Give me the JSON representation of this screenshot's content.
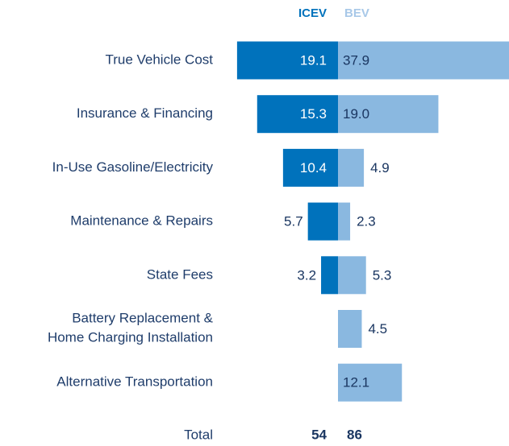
{
  "chart_data": {
    "type": "diverging-bar",
    "categories": [
      "True Vehicle Cost",
      "Insurance & Financing",
      "In-Use Gasoline/Electricity",
      "Maintenance & Repairs",
      "State Fees",
      "Battery Replacement &\nHome Charging Installation",
      "Alternative Transportation"
    ],
    "series": [
      {
        "name": "ICEV",
        "color": "#0072bc",
        "values": [
          19.1,
          15.3,
          10.4,
          5.7,
          3.2,
          null,
          null
        ],
        "value_labels": [
          "19.1",
          "15.3",
          "10.4",
          "5.7",
          "3.2",
          null,
          null
        ]
      },
      {
        "name": "BEV",
        "color": "#8ab8e0",
        "values": [
          37.9,
          19.0,
          4.9,
          2.3,
          5.3,
          4.5,
          12.1
        ],
        "value_labels": [
          "37.9",
          "19.0",
          "4.9",
          "2.3",
          "5.3",
          "4.5",
          "12.1"
        ]
      }
    ],
    "total_label": "Total",
    "totals": [
      54,
      86
    ]
  }
}
